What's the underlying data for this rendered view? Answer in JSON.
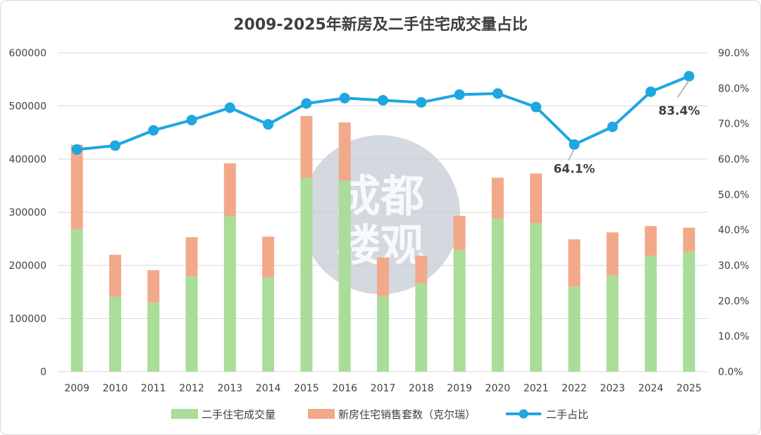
{
  "chart_data": {
    "type": "bar+line",
    "title": "2009-2025年新房及二手住宅成交量占比",
    "categories": [
      "2009",
      "2010",
      "2011",
      "2012",
      "2013",
      "2014",
      "2015",
      "2016",
      "2017",
      "2018",
      "2019",
      "2020",
      "2021",
      "2022",
      "2023",
      "2024",
      "2025"
    ],
    "series": [
      {
        "name": "二手住宅成交量",
        "type": "bar-stacked",
        "axis": "left",
        "color": "#a9dd99",
        "values": [
          268000,
          141000,
          130000,
          180000,
          292000,
          177000,
          365000,
          360000,
          142000,
          166000,
          229000,
          288000,
          279000,
          160000,
          181000,
          218000,
          226000
        ]
      },
      {
        "name": "新房住宅销售套数（克尔瑞）",
        "type": "bar-stacked",
        "axis": "left",
        "color": "#f2a98a",
        "values": [
          159000,
          79000,
          61000,
          73000,
          100000,
          77000,
          116000,
          109000,
          73000,
          52000,
          64000,
          77000,
          94000,
          89000,
          81000,
          56000,
          45000
        ]
      },
      {
        "name": "二手占比",
        "type": "line",
        "axis": "right",
        "color": "#1ea7e1",
        "values": [
          62.7,
          63.8,
          68.1,
          71.0,
          74.5,
          69.8,
          75.7,
          77.2,
          76.6,
          76.0,
          78.2,
          78.5,
          74.7,
          64.1,
          69.1,
          79.0,
          83.4
        ]
      }
    ],
    "y_left": {
      "min": 0,
      "max": 600000,
      "ticks": [
        "0",
        "100000",
        "200000",
        "300000",
        "400000",
        "500000",
        "600000"
      ]
    },
    "y_right": {
      "min": 0,
      "max": 90,
      "ticks": [
        "0.0%",
        "10.0%",
        "20.0%",
        "30.0%",
        "40.0%",
        "50.0%",
        "60.0%",
        "70.0%",
        "80.0%",
        "90.0%"
      ]
    },
    "annotations": [
      {
        "category": "2022",
        "text": "64.1%"
      },
      {
        "category": "2025",
        "text": "83.4%"
      }
    ],
    "grid": true,
    "legend_position": "bottom",
    "watermark": {
      "lines": [
        "成都",
        "楼观"
      ]
    }
  }
}
